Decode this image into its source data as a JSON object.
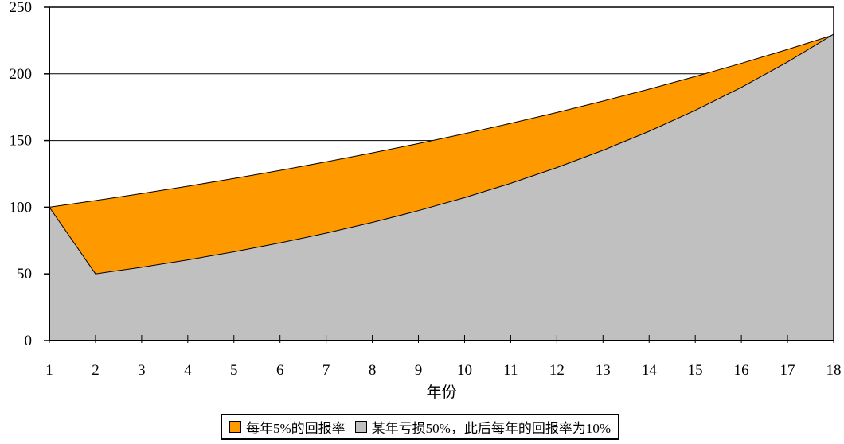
{
  "chart_data": {
    "type": "area",
    "title": "",
    "xlabel": "年份",
    "ylabel": "",
    "x": [
      "1",
      "2",
      "3",
      "4",
      "5",
      "6",
      "7",
      "8",
      "9",
      "10",
      "11",
      "12",
      "13",
      "14",
      "15",
      "16",
      "17",
      "18"
    ],
    "ylim": [
      0,
      250
    ],
    "yticks": [
      0,
      50,
      100,
      150,
      200,
      250
    ],
    "grid": true,
    "legend_position": "bottom-center",
    "plot_background": "#FFFFFF",
    "axis_color": "#000000",
    "gridline_color": "#000000",
    "series": [
      {
        "name": "每年5%的回报率",
        "color": "#FF9900",
        "outline": "#000000",
        "values": [
          100,
          105,
          110.25,
          115.76,
          121.55,
          127.63,
          134.01,
          140.71,
          147.75,
          155.13,
          162.89,
          171.03,
          179.59,
          188.56,
          197.99,
          207.89,
          218.29,
          229.2
        ]
      },
      {
        "name": "某年亏损50%，此后每年的回报率为10%",
        "color": "#C0C0C0",
        "outline": "#000000",
        "values": [
          100,
          50,
          55,
          60.5,
          66.55,
          73.21,
          80.53,
          88.58,
          97.44,
          107.18,
          117.9,
          129.69,
          142.66,
          156.92,
          172.61,
          189.87,
          208.86,
          229.75
        ]
      }
    ]
  }
}
